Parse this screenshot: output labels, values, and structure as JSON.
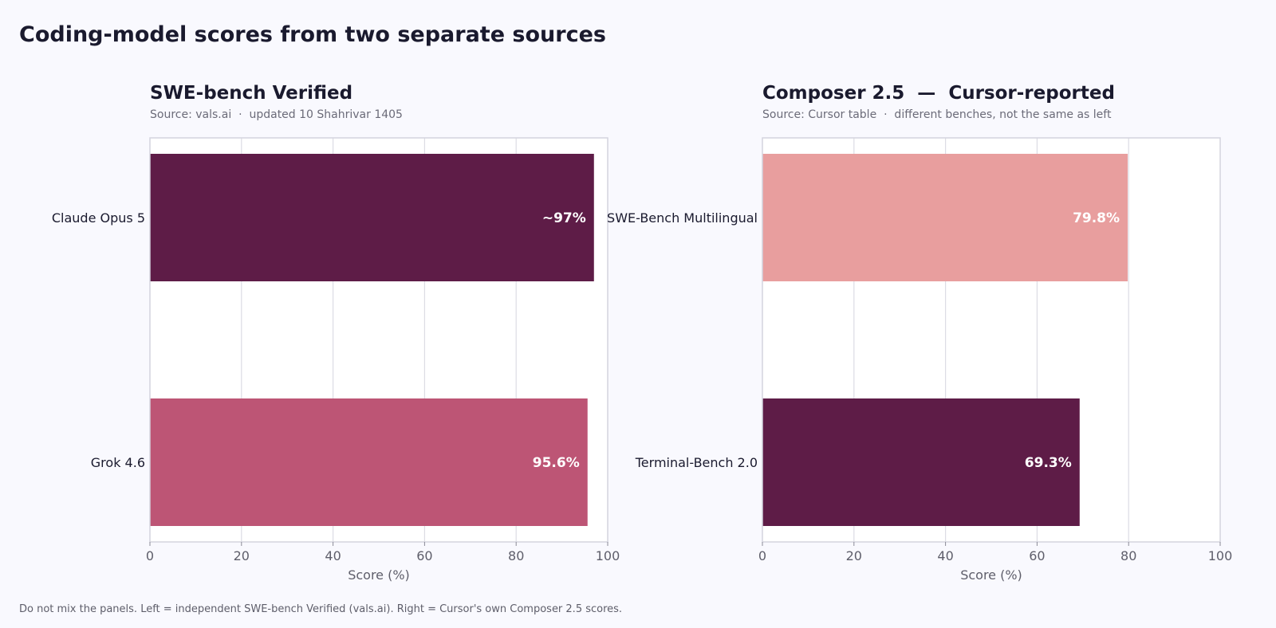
{
  "page_title": "Coding-model scores from two separate sources",
  "footnote": "Do not mix the panels. Left = independent SWE-bench Verified (vals.ai). Right = Cursor's own Composer 2.5 scores.",
  "chart_data": [
    {
      "type": "bar",
      "orientation": "horizontal",
      "title": "SWE-bench Verified",
      "subtitle": "Source: vals.ai  ·  updated 10 Shahrivar 1405",
      "xlabel": "Score (%)",
      "ylabel": "",
      "xlim": [
        0,
        100
      ],
      "xticks": [
        0,
        20,
        40,
        60,
        80,
        100
      ],
      "grid": "vertical",
      "categories": [
        "Claude Opus 5",
        "Grok 4.6"
      ],
      "values": [
        97,
        95.6
      ],
      "value_labels": [
        "~97%",
        "95.6%"
      ],
      "colors": [
        "#5e1c47",
        "#bd5575"
      ]
    },
    {
      "type": "bar",
      "orientation": "horizontal",
      "title": "Composer 2.5  —  Cursor-reported",
      "subtitle": "Source: Cursor table  ·  different benches, not the same as left",
      "xlabel": "Score (%)",
      "ylabel": "",
      "xlim": [
        0,
        100
      ],
      "xticks": [
        0,
        20,
        40,
        60,
        80,
        100
      ],
      "grid": "vertical",
      "categories": [
        "SWE-Bench Multilingual",
        "Terminal-Bench 2.0"
      ],
      "values": [
        79.8,
        69.3
      ],
      "value_labels": [
        "79.8%",
        "69.3%"
      ],
      "colors": [
        "#e89e9e",
        "#5e1c47"
      ]
    }
  ]
}
